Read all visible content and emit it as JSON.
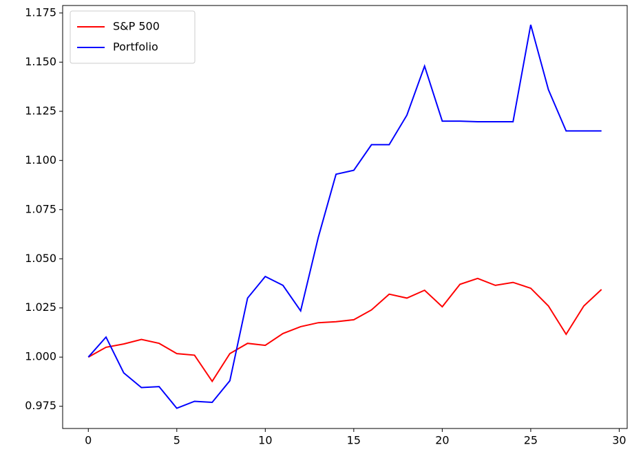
{
  "chart_data": {
    "type": "line",
    "x": [
      0,
      1,
      2,
      3,
      4,
      5,
      6,
      7,
      8,
      9,
      10,
      11,
      12,
      13,
      14,
      15,
      16,
      17,
      18,
      19,
      20,
      21,
      22,
      23,
      24,
      25,
      26,
      27,
      28,
      29
    ],
    "series": [
      {
        "name": "S&P 500",
        "color": "#ff0000",
        "values": [
          1.0,
          1.005,
          1.0067,
          1.009,
          1.007,
          1.0018,
          1.001,
          0.9877,
          1.0018,
          1.007,
          1.006,
          1.012,
          1.0155,
          1.0175,
          1.018,
          1.019,
          1.024,
          1.032,
          1.03,
          1.034,
          1.0256,
          1.037,
          1.04,
          1.0365,
          1.038,
          1.035,
          1.026,
          1.0116,
          1.026,
          1.0344
        ]
      },
      {
        "name": "Portfolio",
        "color": "#0000ff",
        "values": [
          1.0,
          1.0102,
          0.992,
          0.9845,
          0.985,
          0.974,
          0.9775,
          0.977,
          0.988,
          1.03,
          1.041,
          1.0365,
          1.0235,
          1.061,
          1.093,
          1.095,
          1.108,
          1.108,
          1.123,
          1.148,
          1.12,
          1.12,
          1.1197,
          1.1197,
          1.1197,
          1.169,
          1.136,
          1.115,
          1.115,
          1.115
        ]
      }
    ],
    "xlim": [
      -1.45,
      30.45
    ],
    "xticks": [
      0,
      5,
      10,
      15,
      20,
      25,
      30
    ],
    "ylim": [
      0.9637,
      1.1788
    ],
    "yticks": [
      {
        "value": 0.975,
        "label": "0.975"
      },
      {
        "value": 1.0,
        "label": "1.000"
      },
      {
        "value": 1.025,
        "label": "1.025"
      },
      {
        "value": 1.05,
        "label": "1.050"
      },
      {
        "value": 1.075,
        "label": "1.075"
      },
      {
        "value": 1.1,
        "label": "1.100"
      },
      {
        "value": 1.125,
        "label": "1.125"
      },
      {
        "value": 1.15,
        "label": "1.150"
      },
      {
        "value": 1.175,
        "label": "1.175"
      }
    ],
    "legend": "upper left"
  }
}
